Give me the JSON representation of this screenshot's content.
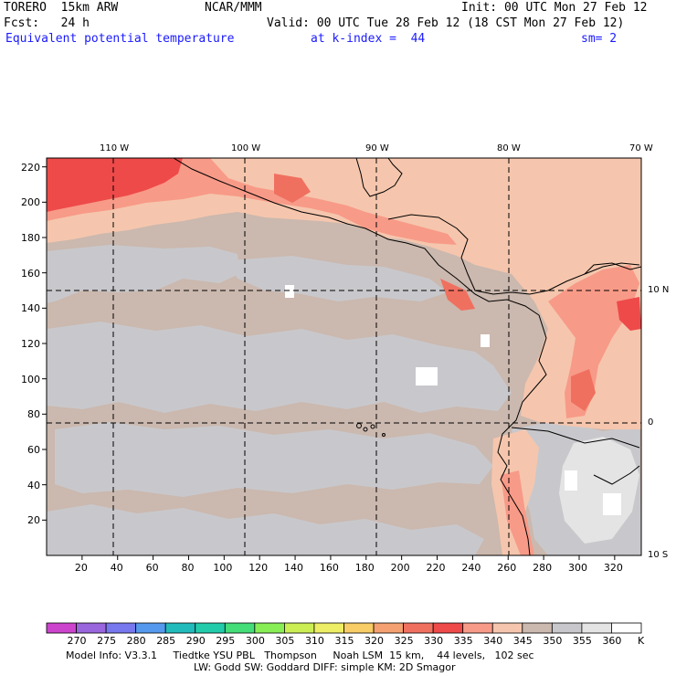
{
  "header": {
    "model": "TORERO  15km ARW",
    "center": "NCAR/MMM",
    "init": "Init: 00 UTC Mon 27 Feb 12",
    "fcst": "Fcst:   24 h",
    "valid": "Valid: 00 UTC Tue 28 Feb 12 (18 CST Mon 27 Feb 12)",
    "field": "Equivalent potential temperature",
    "level": "at k-index =  44",
    "smooth": "sm= 2"
  },
  "lon_labels": [
    "110 W",
    "100 W",
    "90 W",
    "80 W",
    "70 W"
  ],
  "lat_labels": [
    "10 N",
    "0",
    "10 S"
  ],
  "y_ticks": [
    "20",
    "40",
    "60",
    "80",
    "100",
    "120",
    "140",
    "160",
    "180",
    "200",
    "220"
  ],
  "x_ticks": [
    "20",
    "40",
    "60",
    "80",
    "100",
    "120",
    "140",
    "160",
    "180",
    "200",
    "220",
    "240",
    "260",
    "280",
    "300",
    "320"
  ],
  "colorbar": {
    "labels": [
      "270",
      "275",
      "280",
      "285",
      "290",
      "295",
      "300",
      "305",
      "310",
      "315",
      "320",
      "325",
      "330",
      "335",
      "340",
      "345",
      "350",
      "355",
      "360"
    ],
    "unit": "K",
    "colors": [
      "#cc44cc",
      "#9966dd",
      "#7777ee",
      "#5599ee",
      "#22bbbb",
      "#22ccaa",
      "#44dd77",
      "#88ee55",
      "#ccee55",
      "#eeee66",
      "#f8cc66",
      "#f5a070",
      "#f07060",
      "#ee4a4a",
      "#f89a88",
      "#f5c6ad",
      "#cbb8ae",
      "#c8c8cc",
      "#e4e4e4",
      "#ffffff"
    ]
  },
  "footer": {
    "line1": "Model Info: V3.3.1     Tiedtke YSU PBL   Thompson     Noah LSM  15 km,    44 levels,   102 sec",
    "line2": "LW: Godd SW: Goddard DIFF: simple KM: 2D Smagor"
  },
  "fill_colors": {
    "base_tan": "#cbb8ae",
    "gray": "#c8c8cc",
    "light": "#e4e4e4",
    "white": "#ffffff",
    "peach": "#f5c6ad",
    "salmon": "#f89a88",
    "red": "#ee4a4a",
    "coral": "#f07060"
  }
}
